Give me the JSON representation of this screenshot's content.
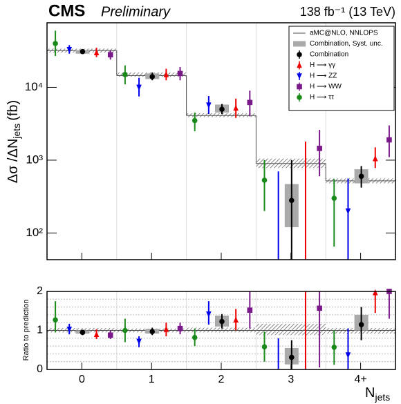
{
  "chart_data": {
    "type": "errorbar",
    "experiment": "CMS",
    "status": "Preliminary",
    "lumi": "138 fb⁻¹ (13 TeV)",
    "ylabel": {
      "main": "Δσ /ΔN",
      "sub": "jets",
      "unit": "(fb)"
    },
    "ratio_label": "Ratio to prediction",
    "xlabel": {
      "main": "N",
      "sub": "jets"
    },
    "categories": [
      "0",
      "1",
      "2",
      "3",
      "4+"
    ],
    "log_y": true,
    "ylim": [
      43,
      77000
    ],
    "yticks": [
      {
        "value": 100,
        "label": "10²"
      },
      {
        "value": 1000,
        "label": "10³"
      },
      {
        "value": 10000,
        "label": "10⁴"
      }
    ],
    "ratio_ylim": [
      0,
      2
    ],
    "ratio_yticks": [
      0,
      1,
      2
    ],
    "ratio_minor_ticks": [
      0.2,
      0.4,
      0.6,
      0.8,
      1.2,
      1.4,
      1.6,
      1.8
    ],
    "prediction": {
      "name": "aMC@NLO, NNLOPS",
      "color": "#555555",
      "values": [
        32000,
        14500,
        4100,
        900,
        520
      ],
      "lower": [
        30000,
        14000,
        3900,
        780,
        480
      ],
      "upper": [
        34000,
        16000,
        4400,
        1050,
        560
      ],
      "ratio_lower": [
        0.95,
        0.95,
        0.95,
        0.88,
        0.92
      ],
      "ratio_upper": [
        1.06,
        1.05,
        1.07,
        1.17,
        1.06
      ]
    },
    "syst": {
      "name": "Combination, Syst. unc.",
      "color": "#aaaaaa",
      "lower": [
        29000,
        13000,
        4500,
        120,
        480
      ],
      "upper": [
        32500,
        15500,
        5800,
        470,
        750
      ],
      "ratio_lower": [
        0.92,
        0.92,
        1.1,
        0.13,
        1.0
      ],
      "ratio_upper": [
        1.0,
        1.04,
        1.38,
        0.55,
        1.4
      ]
    },
    "series": [
      {
        "name": "Combination",
        "color": "#000000",
        "marker": "circle",
        "values": [
          31000,
          14000,
          5000,
          280,
          600
        ],
        "lower": [
          29000,
          12500,
          4300,
          40,
          420
        ],
        "upper": [
          33000,
          16000,
          5900,
          1000,
          830
        ],
        "ratio": [
          0.95,
          0.97,
          1.23,
          0.31,
          1.15
        ],
        "ratio_lower": [
          0.88,
          0.88,
          1.05,
          0.0,
          0.75
        ],
        "ratio_upper": [
          1.02,
          1.07,
          1.42,
          0.75,
          1.6
        ]
      },
      {
        "name": "H ⟶ γγ",
        "color": "#ee0000",
        "marker": "triangle-up",
        "values": [
          30000,
          15000,
          5200,
          null,
          1050
        ],
        "lower": [
          26000,
          12500,
          3800,
          40,
          780
        ],
        "upper": [
          35000,
          18000,
          7000,
          1800,
          1500
        ],
        "ratio": [
          0.9,
          1.03,
          1.27,
          null,
          1.97
        ],
        "ratio_lower": [
          0.78,
          0.85,
          1.0,
          0.0,
          1.45
        ],
        "ratio_upper": [
          1.03,
          1.2,
          1.55,
          2.0,
          2.0
        ]
      },
      {
        "name": "H ⟶ ZZ",
        "color": "#0000ee",
        "marker": "triangle-down",
        "values": [
          33000,
          10000,
          5700,
          null,
          200
        ],
        "lower": [
          29000,
          7500,
          4300,
          40,
          40
        ],
        "upper": [
          38000,
          13500,
          7600,
          700,
          560
        ],
        "ratio": [
          1.03,
          0.72,
          1.42,
          null,
          0.37
        ],
        "ratio_lower": [
          0.9,
          0.57,
          1.15,
          0.0,
          0.0
        ],
        "ratio_upper": [
          1.17,
          0.85,
          1.75,
          0.8,
          1.05
        ]
      },
      {
        "name": "H ⟶ WW",
        "color": "#7a1a8a",
        "marker": "square",
        "values": [
          28000,
          15500,
          6200,
          1450,
          1900
        ],
        "lower": [
          24000,
          12500,
          4000,
          600,
          1100
        ],
        "upper": [
          32000,
          19000,
          9000,
          2600,
          3000
        ],
        "ratio": [
          0.88,
          1.05,
          1.52,
          1.57,
          2.0
        ],
        "ratio_lower": [
          0.78,
          0.9,
          1.05,
          0.05,
          1.3
        ],
        "ratio_upper": [
          1.0,
          1.2,
          2.0,
          2.0,
          2.0
        ]
      },
      {
        "name": "H ⟶ ττ",
        "color": "#1a8a1a",
        "marker": "circle",
        "values": [
          40000,
          15000,
          3500,
          530,
          300
        ],
        "lower": [
          27000,
          11000,
          2500,
          200,
          65
        ],
        "upper": [
          60000,
          20000,
          4500,
          1000,
          550
        ],
        "ratio": [
          1.27,
          1.0,
          0.82,
          0.58,
          0.57
        ],
        "ratio_lower": [
          0.95,
          0.7,
          0.6,
          0.2,
          0.12
        ],
        "ratio_upper": [
          1.75,
          1.3,
          1.05,
          0.97,
          1.0
        ]
      }
    ]
  }
}
